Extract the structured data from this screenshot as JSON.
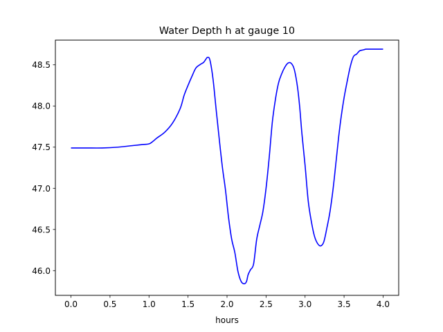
{
  "chart_data": {
    "type": "line",
    "title": "Water Depth h at gauge 10",
    "xlabel": "hours",
    "ylabel": "",
    "xlim": [
      -0.2,
      4.2
    ],
    "ylim": [
      45.7,
      48.8
    ],
    "xticks": [
      0.0,
      0.5,
      1.0,
      1.5,
      2.0,
      2.5,
      3.0,
      3.5,
      4.0
    ],
    "xtick_labels": [
      "0.0",
      "0.5",
      "1.0",
      "1.5",
      "2.0",
      "2.5",
      "3.0",
      "3.5",
      "4.0"
    ],
    "yticks": [
      46.0,
      46.5,
      47.0,
      47.5,
      48.0,
      48.5
    ],
    "ytick_labels": [
      "46.0",
      "46.5",
      "47.0",
      "47.5",
      "48.0",
      "48.5"
    ],
    "grid": false,
    "series": [
      {
        "color": "#0000ff",
        "x": [
          0.0,
          0.2,
          0.4,
          0.6,
          0.8,
          0.9,
          1.0,
          1.05,
          1.1,
          1.2,
          1.3,
          1.4,
          1.45,
          1.5,
          1.55,
          1.6,
          1.65,
          1.7,
          1.73,
          1.75,
          1.78,
          1.82,
          1.86,
          1.9,
          1.94,
          1.98,
          2.02,
          2.06,
          2.1,
          2.14,
          2.18,
          2.22,
          2.25,
          2.27,
          2.3,
          2.34,
          2.38,
          2.42,
          2.46,
          2.5,
          2.54,
          2.58,
          2.62,
          2.66,
          2.7,
          2.74,
          2.78,
          2.82,
          2.86,
          2.9,
          2.93,
          2.96,
          3.0,
          3.04,
          3.08,
          3.12,
          3.16,
          3.2,
          3.24,
          3.28,
          3.32,
          3.36,
          3.4,
          3.43,
          3.46,
          3.5,
          3.54,
          3.58,
          3.62,
          3.66,
          3.7,
          3.74,
          3.78,
          3.82,
          3.86,
          3.9,
          3.94,
          3.97,
          4.0
        ],
        "y": [
          47.49,
          47.49,
          47.49,
          47.5,
          47.52,
          47.53,
          47.54,
          47.57,
          47.61,
          47.68,
          47.79,
          47.97,
          48.13,
          48.25,
          48.36,
          48.46,
          48.5,
          48.53,
          48.57,
          48.59,
          48.56,
          48.33,
          47.96,
          47.6,
          47.26,
          46.98,
          46.64,
          46.38,
          46.22,
          45.99,
          45.87,
          45.84,
          45.87,
          45.95,
          46.01,
          46.08,
          46.38,
          46.55,
          46.72,
          47.0,
          47.37,
          47.8,
          48.08,
          48.28,
          48.39,
          48.47,
          48.52,
          48.52,
          48.45,
          48.25,
          48.0,
          47.66,
          47.28,
          46.85,
          46.6,
          46.42,
          46.33,
          46.3,
          46.35,
          46.52,
          46.72,
          47.0,
          47.35,
          47.62,
          47.85,
          48.1,
          48.3,
          48.48,
          48.6,
          48.63,
          48.67,
          48.68,
          48.69,
          48.69,
          48.69,
          48.69,
          48.69,
          48.69,
          48.69
        ]
      }
    ]
  }
}
